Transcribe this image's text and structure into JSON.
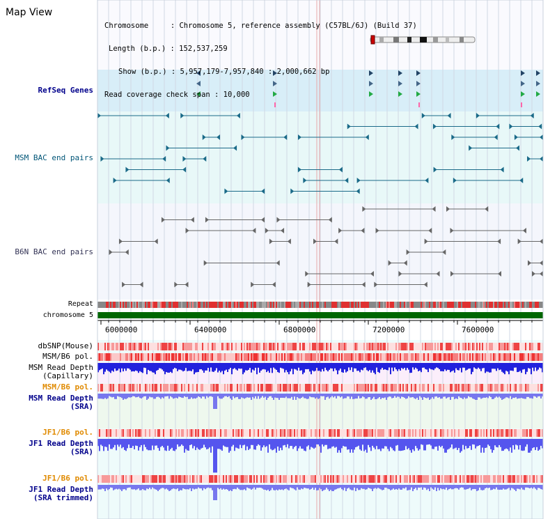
{
  "title": "Map View",
  "info": {
    "chromosome": "Chromosome     : Chromosome 5, reference assembly (C57BL/6J) (Build 37)",
    "length": "Length (b.p.) : 152,537,259",
    "show": "Show (b.p.) : 5,957,179-7,957,840 : 2,000,662 bp",
    "span": "Read coverage check span : 10,000"
  },
  "tracks": {
    "refseq": "RefSeq Genes",
    "msm_bac": "MSM BAC end pairs",
    "b6n_bac": "B6N BAC end pairs",
    "repeat": "Repeat",
    "chrom": "chromosome 5",
    "dbsnp": "dbSNP(Mouse)",
    "msm_b6_pol": "MSM/B6 pol.",
    "msm_depth_cap_1": "MSM Read Depth",
    "msm_depth_cap_2": "(Capillary)",
    "msm_b6_pol2": "MSM/B6 pol.",
    "msm_depth_sra_1": "MSM Read Depth",
    "msm_depth_sra_2": "(SRA)",
    "jf1_b6_pol": "JF1/B6 pol.",
    "jf1_depth_1": "JF1 Read Depth",
    "jf1_depth_2": "(SRA)",
    "jf1_b6_pol2": "JF1/B6 pol.",
    "jf1_trim_1": "JF1 Read Depth",
    "jf1_trim_2": "(SRA trimmed)"
  },
  "axis": {
    "ticks": [
      "6000000",
      "6400000",
      "6800000",
      "7200000",
      "7600000"
    ]
  },
  "colors": {
    "refseq_bg": "#d8eef8",
    "bac_bg": "#e8f8f8",
    "chrom_bar": "#006600",
    "depth_blue": "#3333cc",
    "pol_red": "#ee3333",
    "label_blue": "#00008b",
    "label_orange": "#e08a00"
  }
}
